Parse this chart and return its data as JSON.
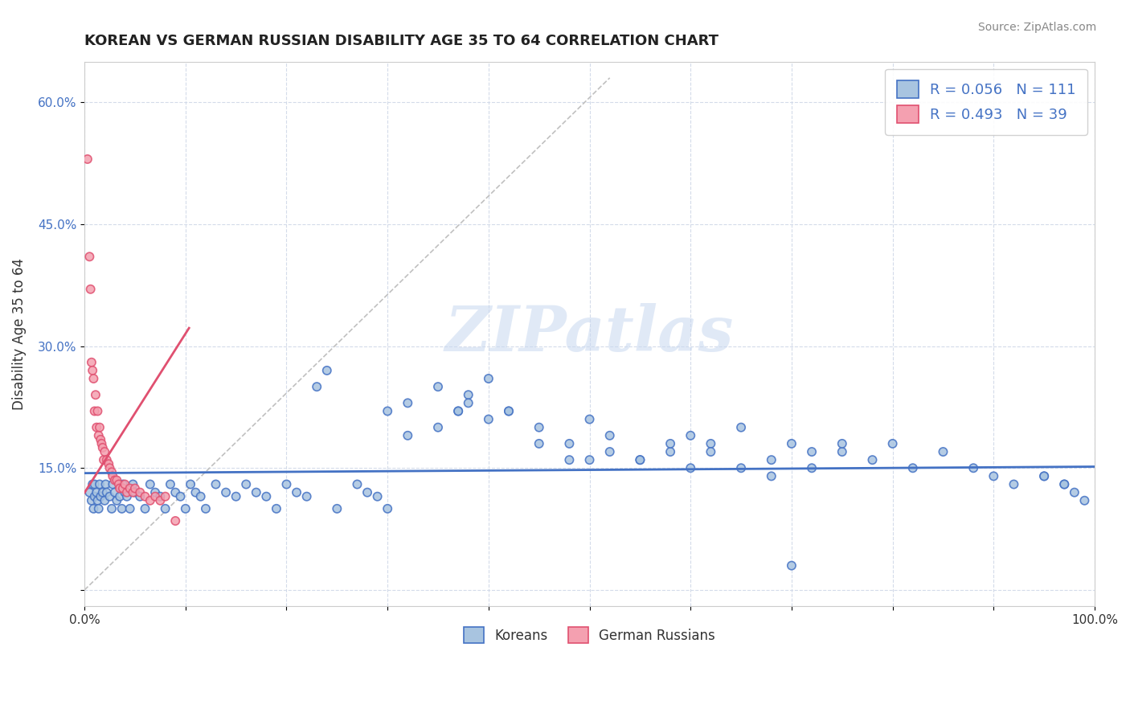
{
  "title": "KOREAN VS GERMAN RUSSIAN DISABILITY AGE 35 TO 64 CORRELATION CHART",
  "source": "Source: ZipAtlas.com",
  "ylabel": "Disability Age 35 to 64",
  "xlim": [
    0.0,
    1.0
  ],
  "ylim": [
    -0.02,
    0.65
  ],
  "x_ticks": [
    0.0,
    0.1,
    0.2,
    0.3,
    0.4,
    0.5,
    0.6,
    0.7,
    0.8,
    0.9,
    1.0
  ],
  "x_tick_labels": [
    "0.0%",
    "",
    "",
    "",
    "",
    "",
    "",
    "",
    "",
    "",
    "100.0%"
  ],
  "y_ticks": [
    0.0,
    0.15,
    0.3,
    0.45,
    0.6
  ],
  "y_tick_labels": [
    "",
    "15.0%",
    "30.0%",
    "45.0%",
    "60.0%"
  ],
  "korean_R": 0.056,
  "korean_N": 111,
  "german_russian_R": 0.493,
  "german_russian_N": 39,
  "korean_face_color": "#a8c4e0",
  "german_russian_face_color": "#f4a0b0",
  "korean_edge_color": "#4472c4",
  "german_russian_edge_color": "#e05070",
  "watermark_text": "ZIPatlas",
  "background_color": "#ffffff",
  "grid_color": "#d0d8e8",
  "koreans_x": [
    0.005,
    0.007,
    0.008,
    0.009,
    0.01,
    0.01,
    0.012,
    0.013,
    0.014,
    0.015,
    0.016,
    0.018,
    0.02,
    0.021,
    0.022,
    0.025,
    0.027,
    0.028,
    0.03,
    0.032,
    0.035,
    0.037,
    0.038,
    0.04,
    0.042,
    0.045,
    0.048,
    0.05,
    0.055,
    0.06,
    0.065,
    0.07,
    0.075,
    0.08,
    0.085,
    0.09,
    0.095,
    0.1,
    0.105,
    0.11,
    0.115,
    0.12,
    0.13,
    0.14,
    0.15,
    0.16,
    0.17,
    0.18,
    0.19,
    0.2,
    0.21,
    0.22,
    0.23,
    0.24,
    0.25,
    0.27,
    0.28,
    0.29,
    0.3,
    0.32,
    0.35,
    0.37,
    0.38,
    0.4,
    0.42,
    0.45,
    0.48,
    0.5,
    0.52,
    0.55,
    0.58,
    0.6,
    0.62,
    0.65,
    0.68,
    0.7,
    0.72,
    0.75,
    0.78,
    0.8,
    0.82,
    0.85,
    0.88,
    0.9,
    0.92,
    0.95,
    0.97,
    0.98,
    0.99,
    0.95,
    0.97,
    0.72,
    0.75,
    0.3,
    0.32,
    0.35,
    0.37,
    0.38,
    0.4,
    0.42,
    0.45,
    0.48,
    0.5,
    0.52,
    0.55,
    0.58,
    0.6,
    0.62,
    0.65,
    0.68,
    0.7
  ],
  "koreans_y": [
    0.12,
    0.11,
    0.13,
    0.1,
    0.115,
    0.13,
    0.12,
    0.11,
    0.1,
    0.13,
    0.115,
    0.12,
    0.11,
    0.13,
    0.12,
    0.115,
    0.1,
    0.13,
    0.12,
    0.11,
    0.115,
    0.1,
    0.13,
    0.12,
    0.115,
    0.1,
    0.13,
    0.12,
    0.115,
    0.1,
    0.13,
    0.12,
    0.115,
    0.1,
    0.13,
    0.12,
    0.115,
    0.1,
    0.13,
    0.12,
    0.115,
    0.1,
    0.13,
    0.12,
    0.115,
    0.13,
    0.12,
    0.115,
    0.1,
    0.13,
    0.12,
    0.115,
    0.25,
    0.27,
    0.1,
    0.13,
    0.12,
    0.115,
    0.1,
    0.19,
    0.2,
    0.22,
    0.24,
    0.26,
    0.22,
    0.18,
    0.16,
    0.21,
    0.19,
    0.16,
    0.17,
    0.19,
    0.18,
    0.2,
    0.16,
    0.18,
    0.15,
    0.17,
    0.16,
    0.18,
    0.15,
    0.17,
    0.15,
    0.14,
    0.13,
    0.14,
    0.13,
    0.12,
    0.11,
    0.14,
    0.13,
    0.17,
    0.18,
    0.22,
    0.23,
    0.25,
    0.22,
    0.23,
    0.21,
    0.22,
    0.2,
    0.18,
    0.16,
    0.17,
    0.16,
    0.18,
    0.15,
    0.17,
    0.15,
    0.14,
    0.03
  ],
  "german_russian_x": [
    0.003,
    0.005,
    0.006,
    0.007,
    0.008,
    0.009,
    0.01,
    0.011,
    0.012,
    0.013,
    0.014,
    0.015,
    0.016,
    0.017,
    0.018,
    0.019,
    0.02,
    0.022,
    0.024,
    0.025,
    0.027,
    0.028,
    0.03,
    0.032,
    0.034,
    0.035,
    0.038,
    0.04,
    0.042,
    0.045,
    0.048,
    0.05,
    0.055,
    0.06,
    0.065,
    0.07,
    0.075,
    0.08,
    0.09
  ],
  "german_russian_y": [
    0.53,
    0.41,
    0.37,
    0.28,
    0.27,
    0.26,
    0.22,
    0.24,
    0.2,
    0.22,
    0.19,
    0.2,
    0.185,
    0.18,
    0.175,
    0.16,
    0.17,
    0.16,
    0.155,
    0.15,
    0.145,
    0.14,
    0.135,
    0.135,
    0.13,
    0.125,
    0.125,
    0.13,
    0.12,
    0.125,
    0.12,
    0.125,
    0.12,
    0.115,
    0.11,
    0.115,
    0.11,
    0.115,
    0.085
  ]
}
